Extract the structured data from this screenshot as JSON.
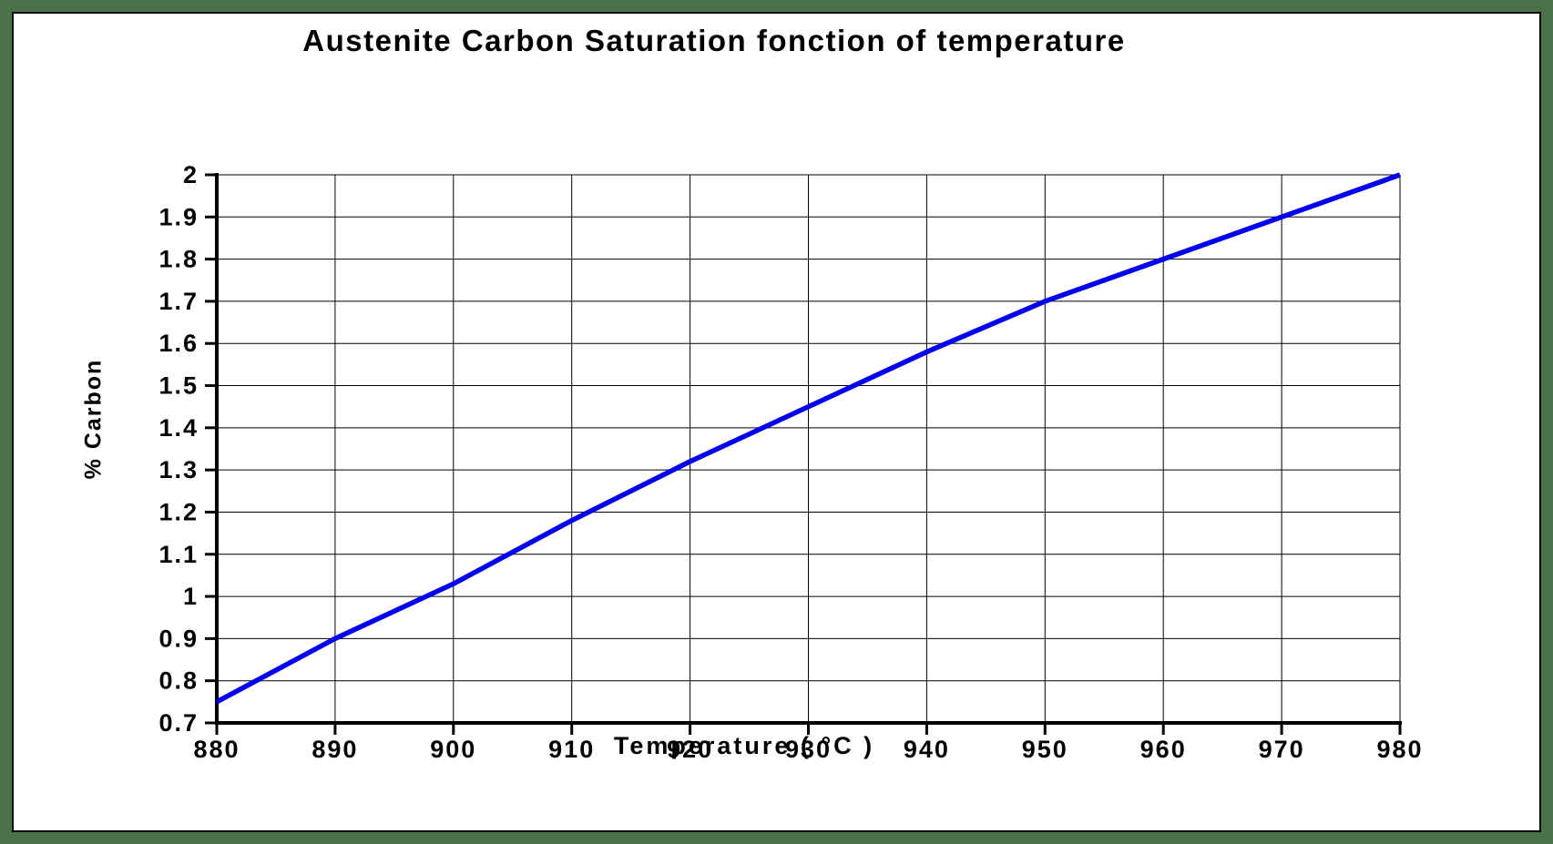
{
  "chart_data": {
    "type": "line",
    "title": "Austenite Carbon Saturation fonction of temperature",
    "xlabel": "Temperature ( °C )",
    "ylabel": "% Carbon",
    "x": [
      880,
      890,
      900,
      910,
      920,
      930,
      940,
      950,
      960,
      970,
      980
    ],
    "series": [
      {
        "name": "Austenite carbon saturation",
        "color": "#0000ee",
        "values": [
          0.75,
          0.9,
          1.03,
          1.18,
          1.32,
          1.45,
          1.58,
          1.7,
          1.8,
          1.9,
          2.0
        ]
      }
    ],
    "xlim": [
      880,
      980
    ],
    "ylim": [
      0.7,
      2.0
    ],
    "x_tick_labels": [
      "880",
      "890",
      "900",
      "910",
      "920",
      "930",
      "940",
      "950",
      "960",
      "970",
      "980"
    ],
    "y_tick_values": [
      0.7,
      0.8,
      0.9,
      1,
      1.1,
      1.2,
      1.3,
      1.4,
      1.5,
      1.6,
      1.7,
      1.8,
      1.9,
      2
    ],
    "y_tick_labels": [
      "0.7",
      "0.8",
      "0.9",
      "1",
      "1.1",
      "1.2",
      "1.3",
      "1.4",
      "1.5",
      "1.6",
      "1.7",
      "1.8",
      "1.9",
      "2"
    ],
    "grid": "on",
    "legend": "none"
  },
  "colors": {
    "frame_green": "#4a7249",
    "background": "#ffffff",
    "axis_black": "#000000",
    "line_blue": "#0000ee"
  }
}
